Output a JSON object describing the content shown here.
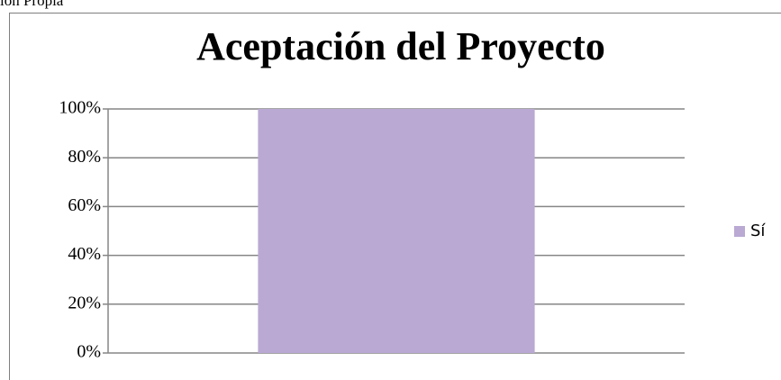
{
  "note": "ión Propia",
  "chart_data": {
    "type": "bar",
    "title": "Aceptación del Proyecto",
    "categories": [
      null
    ],
    "series": [
      {
        "name": "Sí",
        "color": "#b9a9d3",
        "values": [
          100
        ]
      }
    ],
    "ylim": [
      0,
      100
    ],
    "yticks": [
      {
        "value": 0,
        "label": "0%"
      },
      {
        "value": 20,
        "label": "20%"
      },
      {
        "value": 40,
        "label": "40%"
      },
      {
        "value": 60,
        "label": "60%"
      },
      {
        "value": 80,
        "label": "80%"
      },
      {
        "value": 100,
        "label": "100%"
      }
    ],
    "grid": true,
    "legend": "right"
  }
}
